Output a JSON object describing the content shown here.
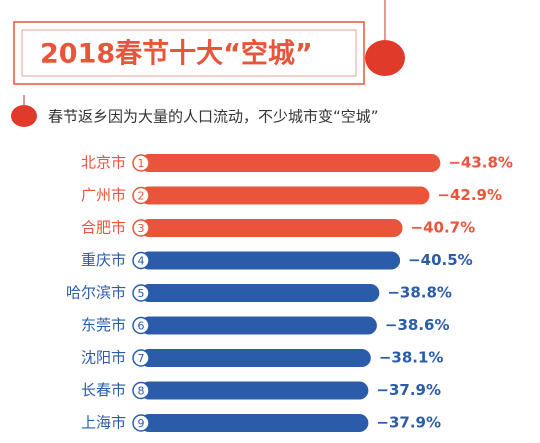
{
  "chart_data": {
    "type": "bar",
    "orientation": "horizontal",
    "title": "2018春节十大“空城”",
    "subtitle": "春节返乡因为大量的人口流动，不少城市变“空城”",
    "categories": [
      "北京市",
      "广州市",
      "合肥市",
      "重庆市",
      "哈尔滨市",
      "东莞市",
      "沈阳市",
      "长春市",
      "上海市"
    ],
    "ranks": [
      1,
      2,
      3,
      4,
      5,
      6,
      7,
      8,
      9
    ],
    "values": [
      -43.8,
      -42.9,
      -40.7,
      -40.5,
      -38.8,
      -38.6,
      -38.1,
      -37.9,
      -37.9
    ],
    "value_labels": [
      "−43.8%",
      "−42.9%",
      "−40.7%",
      "−40.5%",
      "−38.8%",
      "−38.6%",
      "−38.1%",
      "−37.9%",
      "−37.9%"
    ],
    "colors": [
      "#e8553a",
      "#e8553a",
      "#e8553a",
      "#2a5caa",
      "#2a5caa",
      "#2a5caa",
      "#2a5caa",
      "#2a5caa",
      "#2a5caa"
    ],
    "xlim": [
      -20,
      -45
    ]
  }
}
